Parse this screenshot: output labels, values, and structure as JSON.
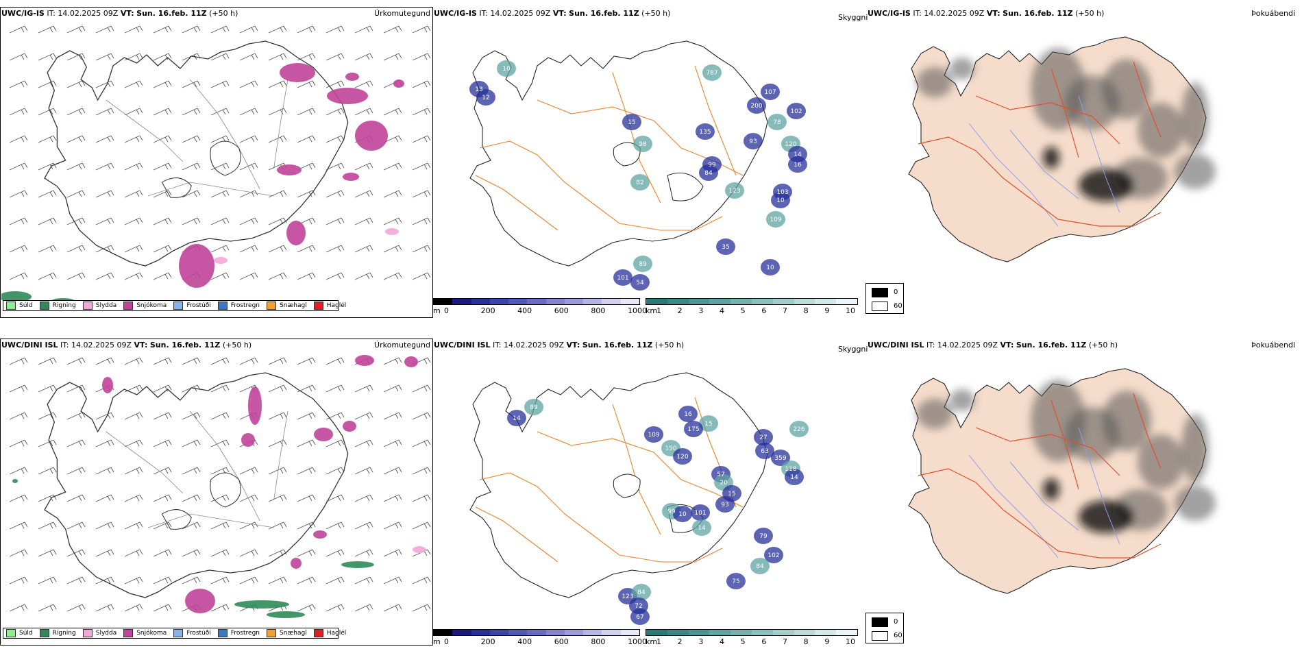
{
  "panels": {
    "top_left": {
      "model": "UWC/IG-IS",
      "it_label": "IT:",
      "it_value": "14.02.2025 09Z",
      "vt_label": "VT:",
      "vt_value": "Sun. 16.feb. 11Z",
      "lead": "(+50 h)",
      "product": "Úrkomutegund"
    },
    "top_mid": {
      "model": "UWC/IG-IS",
      "it_label": "IT:",
      "it_value": "14.02.2025 09Z",
      "vt_label": "VT:",
      "vt_value": "Sun. 16.feb. 11Z",
      "lead": "(+50 h)",
      "product": "Skyggni"
    },
    "top_right": {
      "model": "UWC/IG-IS",
      "it_label": "IT:",
      "it_value": "14.02.2025 09Z",
      "vt_label": "VT:",
      "vt_value": "Sun. 16.feb. 11Z",
      "lead": "(+50 h)",
      "product": "Þokuábendi"
    },
    "bot_left": {
      "model": "UWC/DINI ISL",
      "it_label": "IT:",
      "it_value": "14.02.2025 09Z",
      "vt_label": "VT:",
      "vt_value": "Sun. 16.feb. 11Z",
      "lead": "(+50 h)",
      "product": "Úrkomutegund"
    },
    "bot_mid": {
      "model": "UWC/DINI ISL",
      "it_label": "IT:",
      "it_value": "14.02.2025 09Z",
      "vt_label": "VT:",
      "vt_value": "Sun. 16.feb. 11Z",
      "lead": "(+50 h)",
      "product": "Skyggni"
    },
    "bot_right": {
      "model": "UWC/DINI ISL",
      "it_label": "IT:",
      "it_value": "14.02.2025 09Z",
      "vt_label": "VT:",
      "vt_value": "Sun. 16.feb. 11Z",
      "lead": "(+50 h)",
      "product": "Þokuábendi"
    }
  },
  "precip_legend": [
    {
      "label": "Súld",
      "color": "#90ee90"
    },
    {
      "label": "Rigning",
      "color": "#2e8b57"
    },
    {
      "label": "Slydda",
      "color": "#f4a6d7"
    },
    {
      "label": "Snjókoma",
      "color": "#c0449a"
    },
    {
      "label": "Frostúði",
      "color": "#87b4e8"
    },
    {
      "label": "Frostregn",
      "color": "#3a78c0"
    },
    {
      "label": "Snæhagl",
      "color": "#f0a030"
    },
    {
      "label": "Haglél",
      "color": "#e02020"
    }
  ],
  "colorbars": {
    "height": {
      "unit": "m",
      "ticks": [
        "0",
        "200",
        "400",
        "600",
        "800",
        "1000"
      ],
      "colors": [
        "#000000",
        "#1a1a80",
        "#26309a",
        "#3a46ac",
        "#5058b8",
        "#6a6cc4",
        "#8484d0",
        "#9c9cdc",
        "#b6b6e6",
        "#d0d0f0",
        "#e8e8f8"
      ]
    },
    "visibility": {
      "unit": "km",
      "ticks": [
        "1",
        "2",
        "3",
        "4",
        "5",
        "6",
        "7",
        "8",
        "9",
        "10"
      ],
      "colors": [
        "#2a7a78",
        "#3a8886",
        "#4a9694",
        "#5ea4a2",
        "#74b2b0",
        "#8cc0be",
        "#a4cecc",
        "#bcdcda",
        "#d4eae8",
        "#ecf6f5"
      ]
    }
  },
  "fog_legend": {
    "low": "0",
    "high": "60"
  },
  "visibility_labels_top": [
    "10",
    "13",
    "12",
    "787",
    "107",
    "200",
    "78",
    "102",
    "15",
    "98",
    "135",
    "93",
    "120",
    "14",
    "16",
    "82",
    "84",
    "99",
    "123",
    "103",
    "10",
    "109",
    "10",
    "101",
    "89",
    "54",
    "35"
  ],
  "visibility_labels_bot": [
    "89",
    "14",
    "16",
    "15",
    "175",
    "109",
    "150",
    "120",
    "27",
    "226",
    "63",
    "359",
    "118",
    "14",
    "57",
    "20",
    "15",
    "93",
    "99",
    "10",
    "101",
    "14",
    "79",
    "102",
    "84",
    "75",
    "123",
    "84",
    "72",
    "67"
  ]
}
